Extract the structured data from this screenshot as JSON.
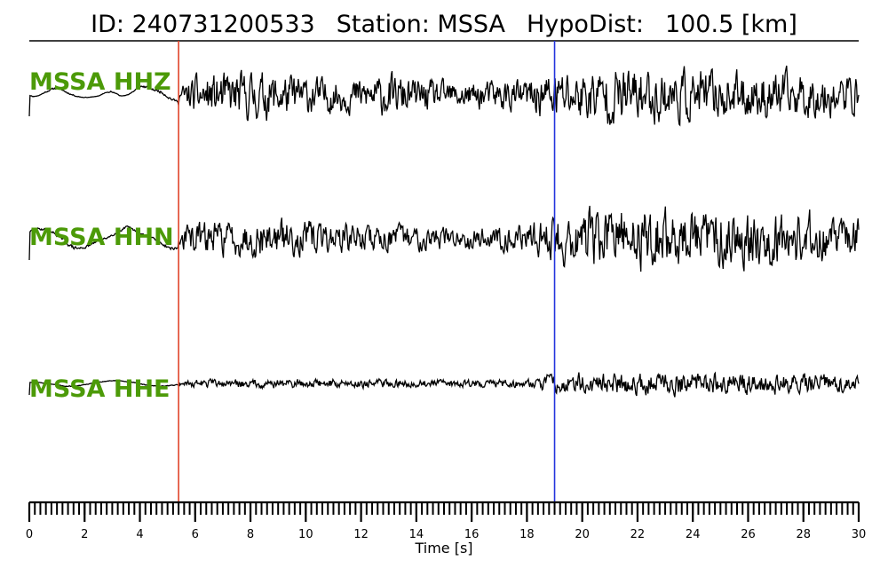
{
  "title": {
    "id_label": "ID:",
    "id_value": "240731200533",
    "station_label": "Station:",
    "station_value": "MSSA",
    "hypodist_label": "HypoDist:",
    "hypodist_value": "100.5",
    "hypodist_unit": "[km]"
  },
  "colors": {
    "trace": "#000000",
    "channel_label": "#4c9a08",
    "p_pick": "#e0442a",
    "s_pick": "#2233dd",
    "frame": "#000000"
  },
  "chart_data": {
    "type": "line",
    "xlabel": "Time [s]",
    "xlim": [
      0,
      30
    ],
    "major_ticks": [
      0,
      2,
      4,
      6,
      8,
      10,
      12,
      14,
      16,
      18,
      20,
      22,
      24,
      26,
      28,
      30
    ],
    "tick_labels": [
      "0",
      "2",
      "4",
      "6",
      "8",
      "10",
      "12",
      "14",
      "16",
      "18",
      "20",
      "22",
      "24",
      "26",
      "28",
      "30"
    ],
    "minor_tick_step": 0.2,
    "p_pick_time": 5.4,
    "s_pick_time": 19.0,
    "series": [
      {
        "name": "MSSA HHZ",
        "note": "approximate normalized amplitude envelope read from the waveform",
        "x": [
          0,
          0.5,
          1,
          1.5,
          2,
          2.5,
          3,
          3.5,
          4,
          4.5,
          5,
          5.4,
          6,
          7,
          8,
          9,
          10,
          11,
          12,
          13,
          14,
          15,
          16,
          17,
          18,
          19,
          20,
          21,
          22,
          23,
          24,
          25,
          26,
          27,
          28,
          29,
          30
        ],
        "y": [
          -0.2,
          0.15,
          0.35,
          0.2,
          0.1,
          0.0,
          -0.3,
          0.1,
          0.4,
          0.3,
          0.5,
          0.3,
          0.7,
          0.8,
          0.85,
          0.8,
          0.7,
          0.6,
          0.6,
          0.75,
          0.6,
          0.5,
          0.5,
          0.55,
          0.6,
          0.9,
          0.9,
          1.0,
          1.0,
          0.95,
          0.9,
          0.85,
          0.8,
          0.85,
          0.8,
          0.7,
          0.7
        ]
      },
      {
        "name": "MSSA HHN",
        "note": "approximate normalized amplitude envelope read from the waveform",
        "x": [
          0,
          0.5,
          1,
          1.5,
          2,
          2.5,
          3,
          3.5,
          4,
          4.5,
          5,
          5.4,
          6,
          7,
          8,
          9,
          10,
          11,
          12,
          13,
          14,
          15,
          16,
          17,
          18,
          19,
          20,
          21,
          22,
          23,
          24,
          25,
          26,
          27,
          28,
          29,
          30
        ],
        "y": [
          0.3,
          0.35,
          0.4,
          0.5,
          0.35,
          0.2,
          0.3,
          0.4,
          0.2,
          0.3,
          0.4,
          0.4,
          0.5,
          0.55,
          0.6,
          0.6,
          0.55,
          0.5,
          0.45,
          0.45,
          0.4,
          0.35,
          0.35,
          0.4,
          0.4,
          0.9,
          0.95,
          0.95,
          1.0,
          0.95,
          0.95,
          0.9,
          0.85,
          0.9,
          0.85,
          0.7,
          0.6
        ]
      },
      {
        "name": "MSSA HHE",
        "note": "approximate normalized amplitude envelope read from the waveform",
        "x": [
          0,
          0.5,
          1,
          1.5,
          2,
          2.5,
          3,
          3.5,
          4,
          4.5,
          5,
          5.4,
          6,
          7,
          8,
          9,
          10,
          11,
          12,
          13,
          14,
          15,
          16,
          17,
          18,
          19,
          20,
          21,
          22,
          23,
          24,
          25,
          26,
          27,
          28,
          29,
          30
        ],
        "y": [
          0.1,
          0.15,
          0.2,
          0.2,
          0.2,
          0.2,
          0.2,
          0.2,
          0.2,
          0.2,
          0.2,
          0.2,
          0.25,
          0.25,
          0.3,
          0.3,
          0.3,
          0.3,
          0.3,
          0.25,
          0.25,
          0.25,
          0.25,
          0.25,
          0.3,
          0.6,
          0.65,
          0.7,
          0.7,
          0.7,
          0.75,
          0.7,
          0.65,
          0.65,
          0.6,
          0.55,
          0.5
        ]
      }
    ]
  }
}
